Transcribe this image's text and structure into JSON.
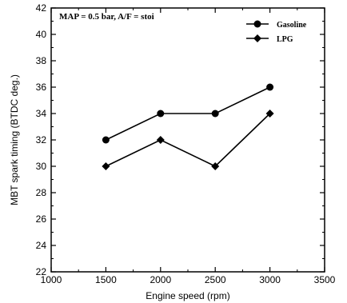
{
  "chart_data": {
    "type": "line",
    "xlabel": "Engine speed (rpm)",
    "ylabel": "MBT spark timing (BTDC deg.)",
    "annotation": "MAP = 0.5 bar, A/F = stoi",
    "xlim": [
      1000,
      3500
    ],
    "ylim": [
      22,
      42
    ],
    "xticks": [
      1000,
      1500,
      2000,
      2500,
      3000,
      3500
    ],
    "yticks": [
      22,
      24,
      26,
      28,
      30,
      32,
      34,
      36,
      38,
      40,
      42
    ],
    "grid": false,
    "legend_position": "top-right",
    "series": [
      {
        "name": "Gasoline",
        "marker": "circle",
        "x": [
          1500,
          2000,
          2500,
          3000
        ],
        "values": [
          32,
          34,
          34,
          36
        ]
      },
      {
        "name": "LPG",
        "marker": "diamond",
        "x": [
          1500,
          2000,
          2500,
          3000
        ],
        "values": [
          30,
          32,
          30,
          34
        ]
      }
    ],
    "colors": {
      "line": "#000000",
      "background": "#ffffff"
    }
  }
}
